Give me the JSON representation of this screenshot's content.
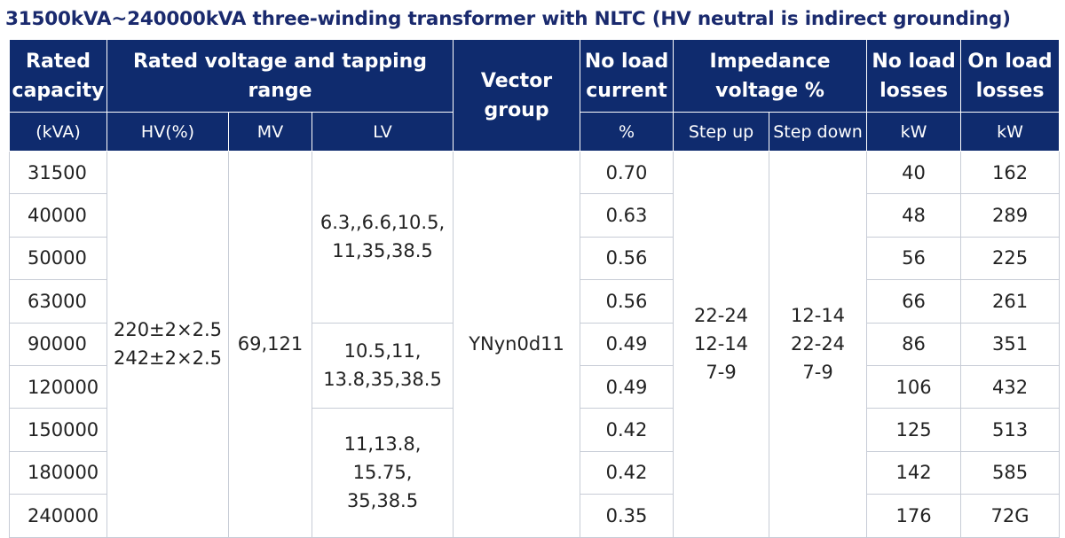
{
  "title": "31500kVA~240000kVA three-winding transformer with NLTC (HV neutral is indirect grounding)",
  "header": {
    "rated_capacity": "Rated capacity",
    "rated_voltage": "Rated voltage and tapping range",
    "vector_group": "Vector group",
    "no_load_current": "No load current",
    "impedance_voltage": "Impedance voltage %",
    "no_load_losses": "No load losses",
    "on_load_losses": "On load losses"
  },
  "units": {
    "capacity": "(kVA)",
    "hv": "HV(%)",
    "mv": "MV",
    "lv": "LV",
    "current": "%",
    "step_up": "Step up",
    "step_down": "Step down",
    "no_load_losses": "kW",
    "on_load_losses": "kW"
  },
  "merged": {
    "hv_line1": "220±2×2.5",
    "hv_line2": "242±2×2.5",
    "mv": "69,121",
    "lv_group1_line1": "6.3,,6.6,10.5,",
    "lv_group1_line2": "11,35,38.5",
    "lv_group2_line1": "10.5,11,",
    "lv_group2_line2": "13.8,35,38.5",
    "lv_group3_line1": "11,13.8,",
    "lv_group3_line2": "15.75,",
    "lv_group3_line3": "35,38.5",
    "vector_group": "YNyn0d11",
    "step_up_line1": "22-24",
    "step_up_line2": "12-14",
    "step_up_line3": "7-9",
    "step_down_line1": "12-14",
    "step_down_line2": "22-24",
    "step_down_line3": "7-9"
  },
  "rows": [
    {
      "capacity": "31500",
      "current": "0.70",
      "nll": "40",
      "oll": "162"
    },
    {
      "capacity": "40000",
      "current": "0.63",
      "nll": "48",
      "oll": "289"
    },
    {
      "capacity": "50000",
      "current": "0.56",
      "nll": "56",
      "oll": "225"
    },
    {
      "capacity": "63000",
      "current": "0.56",
      "nll": "66",
      "oll": "261"
    },
    {
      "capacity": "90000",
      "current": "0.49",
      "nll": "86",
      "oll": "351"
    },
    {
      "capacity": "120000",
      "current": "0.49",
      "nll": "106",
      "oll": "432"
    },
    {
      "capacity": "150000",
      "current": "0.42",
      "nll": "125",
      "oll": "513"
    },
    {
      "capacity": "180000",
      "current": "0.42",
      "nll": "142",
      "oll": "585"
    },
    {
      "capacity": "240000",
      "current": "0.35",
      "nll": "176",
      "oll": "72G"
    }
  ]
}
